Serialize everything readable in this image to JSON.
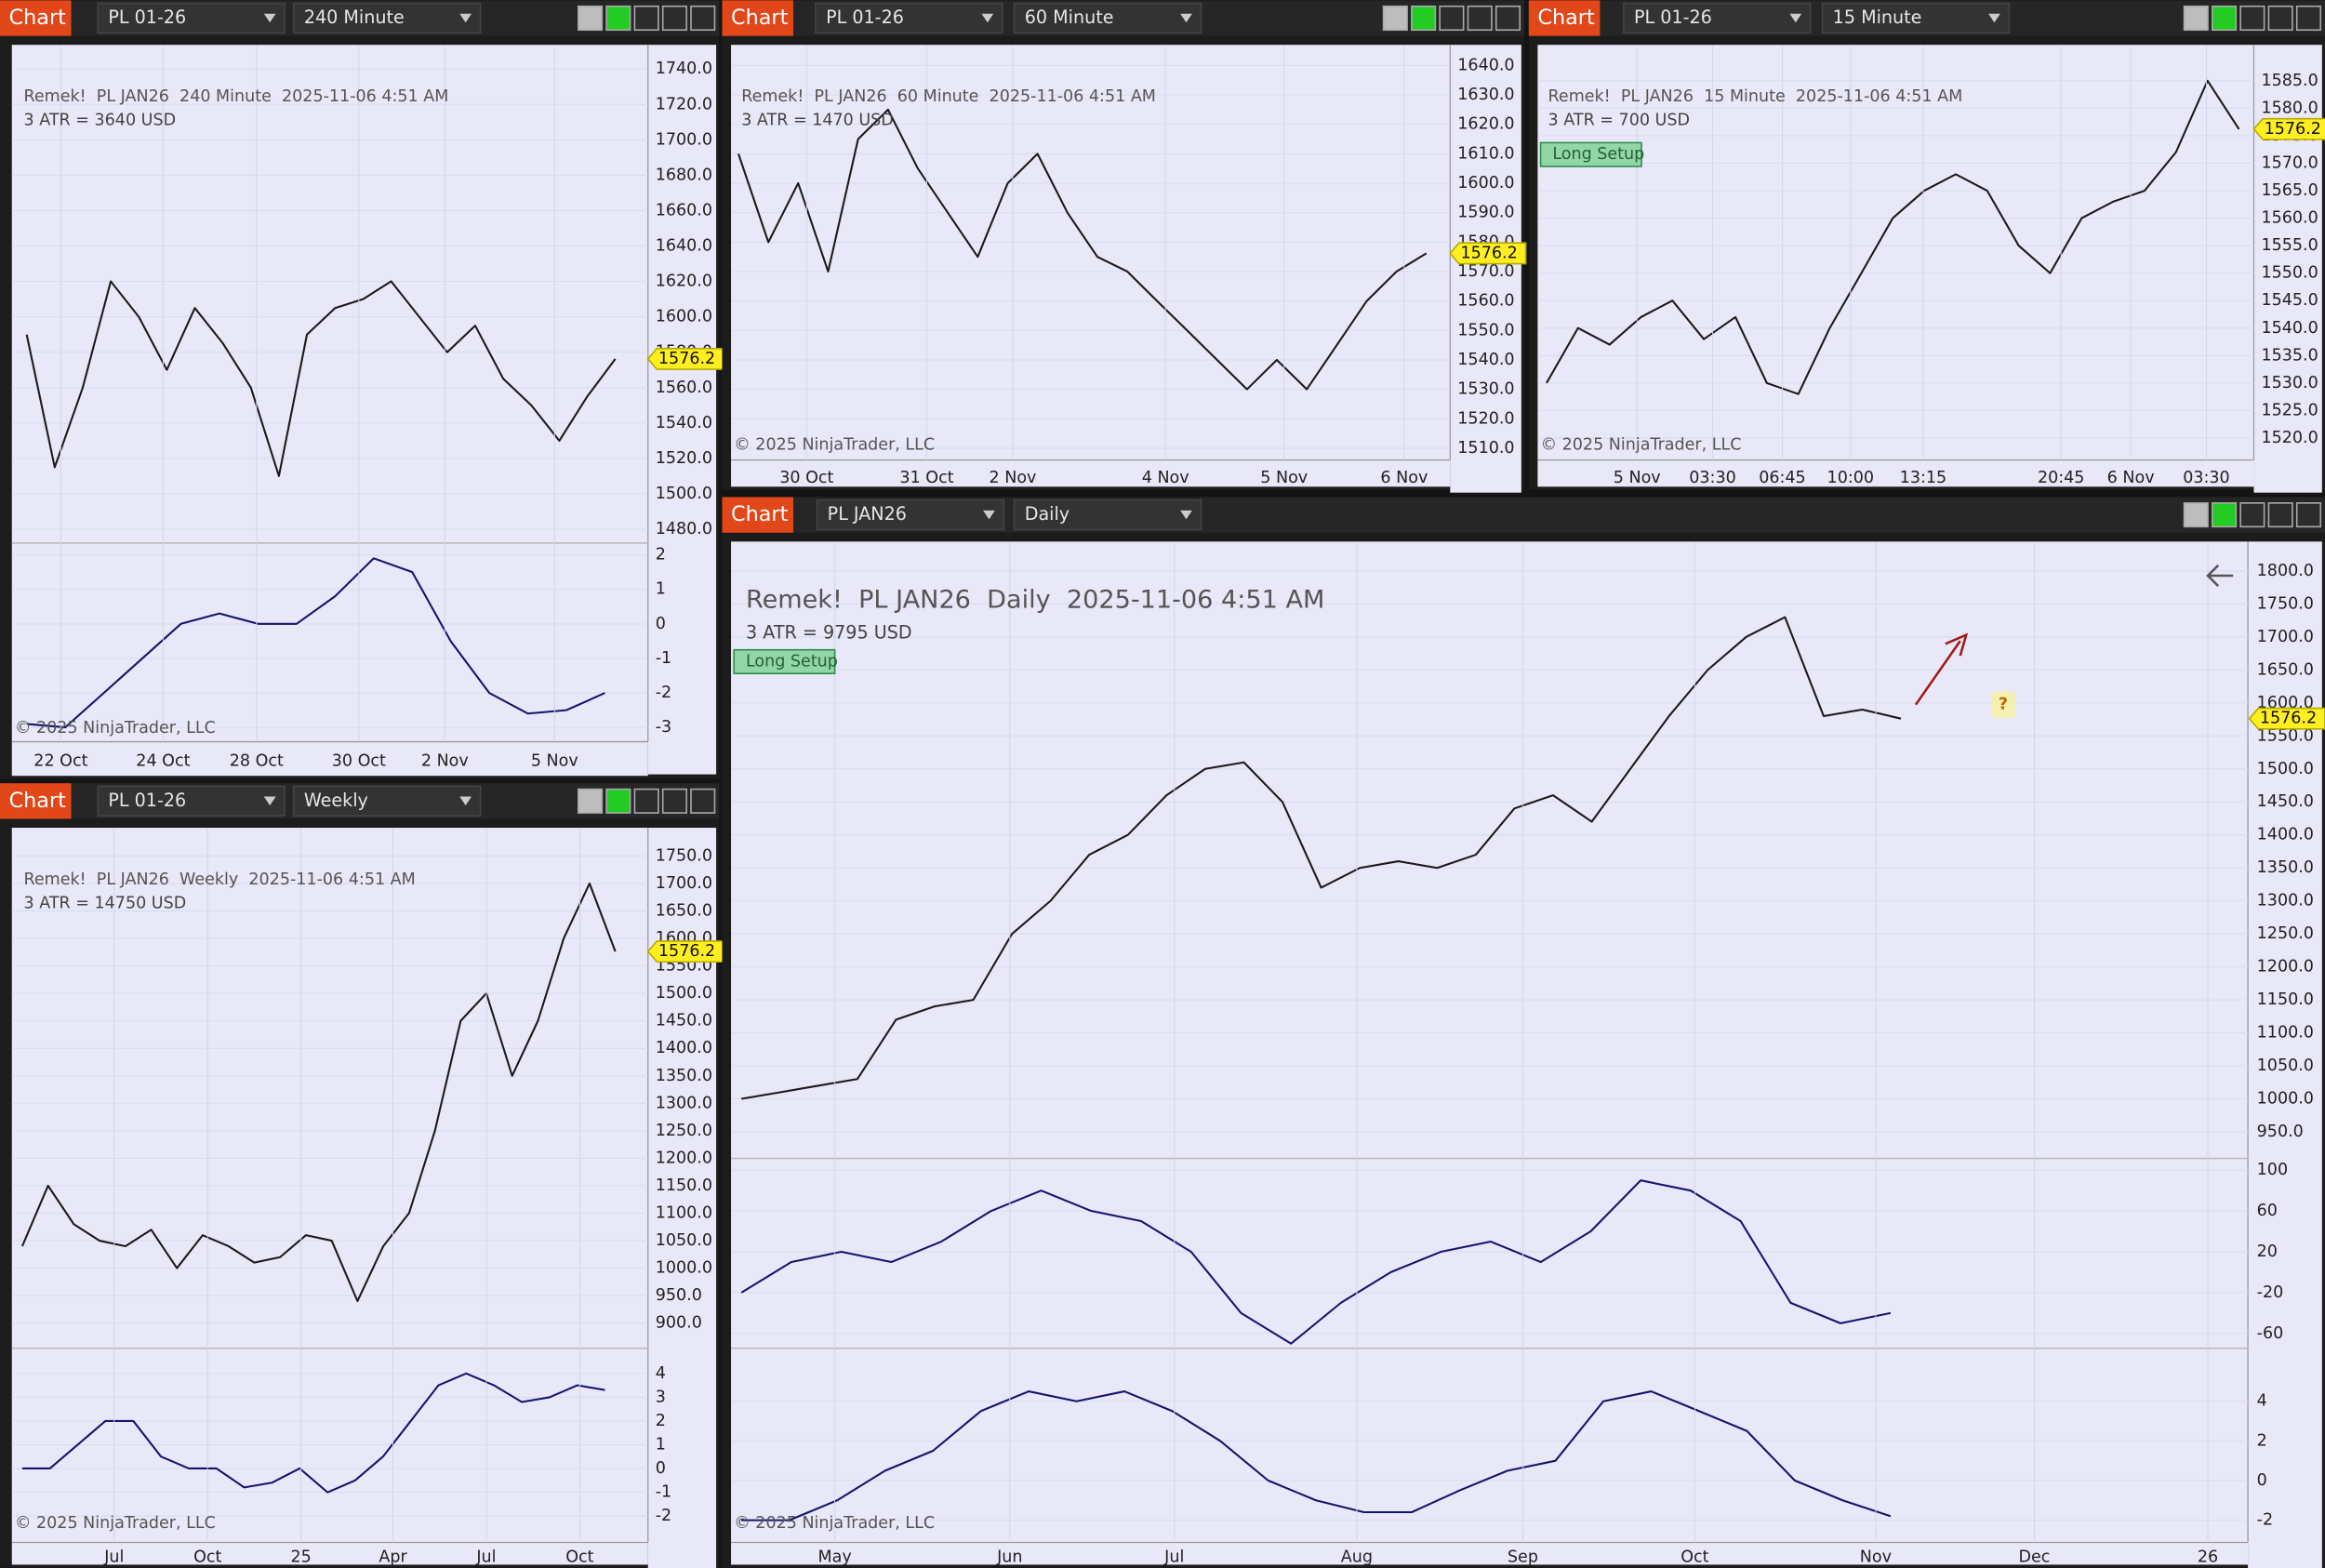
{
  "windows": [
    {
      "button": "Chart",
      "instrument": "PL 01-26",
      "timeframe": "240 Minute",
      "title": "Remek!  PL JAN26  240 Minute  2025-11-06 4:51 AM",
      "atr": "3 ATR = 3640 USD",
      "copyright": "© 2025 NinjaTrader, LLC",
      "current_price": 1576.2,
      "ylim": [
        1473,
        1752
      ],
      "yticks": [
        {
          "value": 1740,
          "label": "1740.0"
        },
        {
          "value": 1720,
          "label": "1720.0"
        },
        {
          "value": 1700,
          "label": "1700.0"
        },
        {
          "value": 1680,
          "label": "1680.0"
        },
        {
          "value": 1660,
          "label": "1660.0"
        },
        {
          "value": 1640,
          "label": "1640.0"
        },
        {
          "value": 1620,
          "label": "1620.0"
        },
        {
          "value": 1600,
          "label": "1600.0"
        },
        {
          "value": 1580,
          "label": "1580.0"
        },
        {
          "value": 1560,
          "label": "1560.0"
        },
        {
          "value": 1540,
          "label": "1540.0"
        },
        {
          "value": 1520,
          "label": "1520.0"
        },
        {
          "value": 1500,
          "label": "1500.0"
        },
        {
          "value": 1480,
          "label": "1480.0"
        }
      ],
      "closes": [
        1590,
        1515,
        1560,
        1620,
        1600,
        1570,
        1605,
        1585,
        1560,
        1510,
        1590,
        1605,
        1610,
        1620,
        1600,
        1580,
        1595,
        1565,
        1550,
        1530,
        1555,
        1576.2
      ],
      "time_labels": [
        "22 Oct",
        "24 Oct",
        "28 Oct",
        "30 Oct",
        "2 Nov",
        "5 Nov"
      ],
      "indicator": {
        "ylim": [
          -3.2,
          2.3
        ],
        "yticks": [
          2,
          1,
          0,
          -1,
          -2,
          -3
        ],
        "values": [
          -2.9,
          -3.0,
          -2.0,
          -1.0,
          0.0,
          0.3,
          0.0,
          0.0,
          0.8,
          1.9,
          1.5,
          -0.5,
          -2.0,
          -2.6,
          -2.5,
          -2.0
        ]
      }
    },
    {
      "button": "Chart",
      "instrument": "PL 01-26",
      "timeframe": "60 Minute",
      "title": "Remek!  PL JAN26  60 Minute  2025-11-06 4:51 AM",
      "atr": "3 ATR = 1470 USD",
      "copyright": "© 2025 NinjaTrader, LLC",
      "current_price": 1576.2,
      "ylim": [
        1506,
        1646
      ],
      "yticks": [
        {
          "value": 1640,
          "label": "1640.0"
        },
        {
          "value": 1630,
          "label": "1630.0"
        },
        {
          "value": 1620,
          "label": "1620.0"
        },
        {
          "value": 1610,
          "label": "1610.0"
        },
        {
          "value": 1600,
          "label": "1600.0"
        },
        {
          "value": 1590,
          "label": "1590.0"
        },
        {
          "value": 1580,
          "label": "1580.0"
        },
        {
          "value": 1570,
          "label": "1570.0"
        },
        {
          "value": 1560,
          "label": "1560.0"
        },
        {
          "value": 1550,
          "label": "1550.0"
        },
        {
          "value": 1540,
          "label": "1540.0"
        },
        {
          "value": 1530,
          "label": "1530.0"
        },
        {
          "value": 1520,
          "label": "1520.0"
        },
        {
          "value": 1510,
          "label": "1510.0"
        }
      ],
      "closes": [
        1610,
        1580,
        1600,
        1570,
        1615,
        1625,
        1605,
        1590,
        1575,
        1600,
        1610,
        1590,
        1575,
        1570,
        1560,
        1550,
        1540,
        1530,
        1540,
        1530,
        1545,
        1560,
        1570,
        1576.2
      ],
      "time_labels": [
        "30 Oct",
        "31 Oct",
        "2 Nov",
        "4 Nov",
        "5 Nov",
        "6 Nov"
      ]
    },
    {
      "button": "Chart",
      "instrument": "PL 01-26",
      "timeframe": "15 Minute",
      "title": "Remek!  PL JAN26  15 Minute  2025-11-06 4:51 AM",
      "atr": "3 ATR = 700 USD",
      "long_setup": "Long Setup",
      "copyright": "© 2025 NinjaTrader, LLC",
      "current_price": 1576.2,
      "ylim": [
        1516,
        1591
      ],
      "yticks": [
        {
          "value": 1585,
          "label": "1585.0"
        },
        {
          "value": 1580,
          "label": "1580.0"
        },
        {
          "value": 1575,
          "label": "1575.0"
        },
        {
          "value": 1570,
          "label": "1570.0"
        },
        {
          "value": 1565,
          "label": "1565.0"
        },
        {
          "value": 1560,
          "label": "1560.0"
        },
        {
          "value": 1555,
          "label": "1555.0"
        },
        {
          "value": 1550,
          "label": "1550.0"
        },
        {
          "value": 1545,
          "label": "1545.0"
        },
        {
          "value": 1540,
          "label": "1540.0"
        },
        {
          "value": 1535,
          "label": "1535.0"
        },
        {
          "value": 1530,
          "label": "1530.0"
        },
        {
          "value": 1525,
          "label": "1525.0"
        },
        {
          "value": 1520,
          "label": "1520.0"
        }
      ],
      "closes": [
        1530,
        1540,
        1537,
        1542,
        1545,
        1538,
        1542,
        1530,
        1528,
        1540,
        1550,
        1560,
        1565,
        1568,
        1565,
        1555,
        1550,
        1560,
        1563,
        1565,
        1572,
        1585,
        1576.2
      ],
      "time_labels": [
        "5 Nov",
        "03:30",
        "06:45",
        "10:00",
        "13:15",
        "20:45",
        "6 Nov",
        "03:30"
      ]
    },
    {
      "button": "Chart",
      "instrument": "PL 01-26",
      "timeframe": "Weekly",
      "title": "Remek!  PL JAN26  Weekly  2025-11-06 4:51 AM",
      "atr": "3 ATR = 14750 USD",
      "copyright": "© 2025 NinjaTrader, LLC",
      "current_price": 1576.2,
      "ylim": [
        857,
        1796
      ],
      "yticks": [
        {
          "value": 1750,
          "label": "1750.0"
        },
        {
          "value": 1700,
          "label": "1700.0"
        },
        {
          "value": 1650,
          "label": "1650.0"
        },
        {
          "value": 1600,
          "label": "1600.0"
        },
        {
          "value": 1550,
          "label": "1550.0"
        },
        {
          "value": 1500,
          "label": "1500.0"
        },
        {
          "value": 1450,
          "label": "1450.0"
        },
        {
          "value": 1400,
          "label": "1400.0"
        },
        {
          "value": 1350,
          "label": "1350.0"
        },
        {
          "value": 1300,
          "label": "1300.0"
        },
        {
          "value": 1250,
          "label": "1250.0"
        },
        {
          "value": 1200,
          "label": "1200.0"
        },
        {
          "value": 1150,
          "label": "1150.0"
        },
        {
          "value": 1100,
          "label": "1100.0"
        },
        {
          "value": 1050,
          "label": "1050.0"
        },
        {
          "value": 1000,
          "label": "1000.0"
        },
        {
          "value": 950,
          "label": "950.0"
        },
        {
          "value": 900,
          "label": "900.0"
        }
      ],
      "closes": [
        1040,
        1150,
        1080,
        1050,
        1040,
        1070,
        1000,
        1060,
        1040,
        1010,
        1020,
        1060,
        1050,
        940,
        1040,
        1100,
        1250,
        1450,
        1500,
        1350,
        1450,
        1600,
        1700,
        1576.2
      ],
      "time_labels": [
        "Jul",
        "Oct",
        "25",
        "Apr",
        "Jul",
        "Oct"
      ],
      "indicator": {
        "ylim": [
          -2.8,
          5
        ],
        "yticks": [
          4,
          3,
          2,
          1,
          0,
          -1,
          -2
        ],
        "values": [
          0,
          0,
          1,
          2,
          2,
          0.5,
          0,
          0,
          -0.8,
          -0.6,
          0,
          -1,
          -0.5,
          0.5,
          2,
          3.5,
          4,
          3.5,
          2.8,
          3,
          3.5,
          3.3
        ]
      }
    },
    {
      "button": "Chart",
      "instrument": "PL JAN26",
      "timeframe": "Daily",
      "title": "Remek!  PL JAN26  Daily  2025-11-06 4:51 AM",
      "atr": "3 ATR = 9795 USD",
      "long_setup": "Long Setup",
      "question": "?",
      "copyright": "© 2025 NinjaTrader, LLC",
      "current_price": 1576.2,
      "ylim": [
        912,
        1840
      ],
      "yticks": [
        {
          "value": 1800,
          "label": "1800.0"
        },
        {
          "value": 1750,
          "label": "1750.0"
        },
        {
          "value": 1700,
          "label": "1700.0"
        },
        {
          "value": 1650,
          "label": "1650.0"
        },
        {
          "value": 1600,
          "label": "1600.0"
        },
        {
          "value": 1550,
          "label": "1550.0"
        },
        {
          "value": 1500,
          "label": "1500.0"
        },
        {
          "value": 1450,
          "label": "1450.0"
        },
        {
          "value": 1400,
          "label": "1400.0"
        },
        {
          "value": 1350,
          "label": "1350.0"
        },
        {
          "value": 1300,
          "label": "1300.0"
        },
        {
          "value": 1250,
          "label": "1250.0"
        },
        {
          "value": 1200,
          "label": "1200.0"
        },
        {
          "value": 1150,
          "label": "1150.0"
        },
        {
          "value": 1100,
          "label": "1100.0"
        },
        {
          "value": 1050,
          "label": "1050.0"
        },
        {
          "value": 1000,
          "label": "1000.0"
        },
        {
          "value": 950,
          "label": "950.0"
        }
      ],
      "closes": [
        1000,
        1010,
        1020,
        1030,
        1120,
        1140,
        1150,
        1250,
        1300,
        1370,
        1400,
        1460,
        1500,
        1510,
        1450,
        1320,
        1350,
        1360,
        1350,
        1370,
        1440,
        1460,
        1420,
        1500,
        1580,
        1650,
        1700,
        1730,
        1580,
        1590,
        1576.2
      ],
      "time_labels": [
        "May",
        "Jun",
        "Jul",
        "Aug",
        "Sep",
        "Oct",
        "Nov",
        "Dec",
        "26"
      ],
      "oscillator": {
        "ylim": [
          -73,
          110
        ],
        "yticks": [
          100,
          60,
          20,
          -20,
          -60
        ],
        "values": [
          -20,
          10,
          20,
          10,
          30,
          60,
          80,
          60,
          50,
          20,
          -40,
          -70,
          -30,
          0,
          20,
          30,
          10,
          40,
          90,
          80,
          50,
          -30,
          -50,
          -40
        ]
      },
      "indicator": {
        "ylim": [
          -2.75,
          6.6
        ],
        "yticks": [
          4,
          2,
          0,
          -2
        ],
        "values": [
          -2,
          -2,
          -1,
          0.5,
          1.5,
          3.5,
          4.5,
          4,
          4.5,
          3.5,
          2,
          0,
          -1,
          -1.6,
          -1.6,
          -0.5,
          0.5,
          1,
          4,
          4.5,
          3.5,
          2.5,
          0,
          -1,
          -1.8
        ]
      }
    }
  ]
}
